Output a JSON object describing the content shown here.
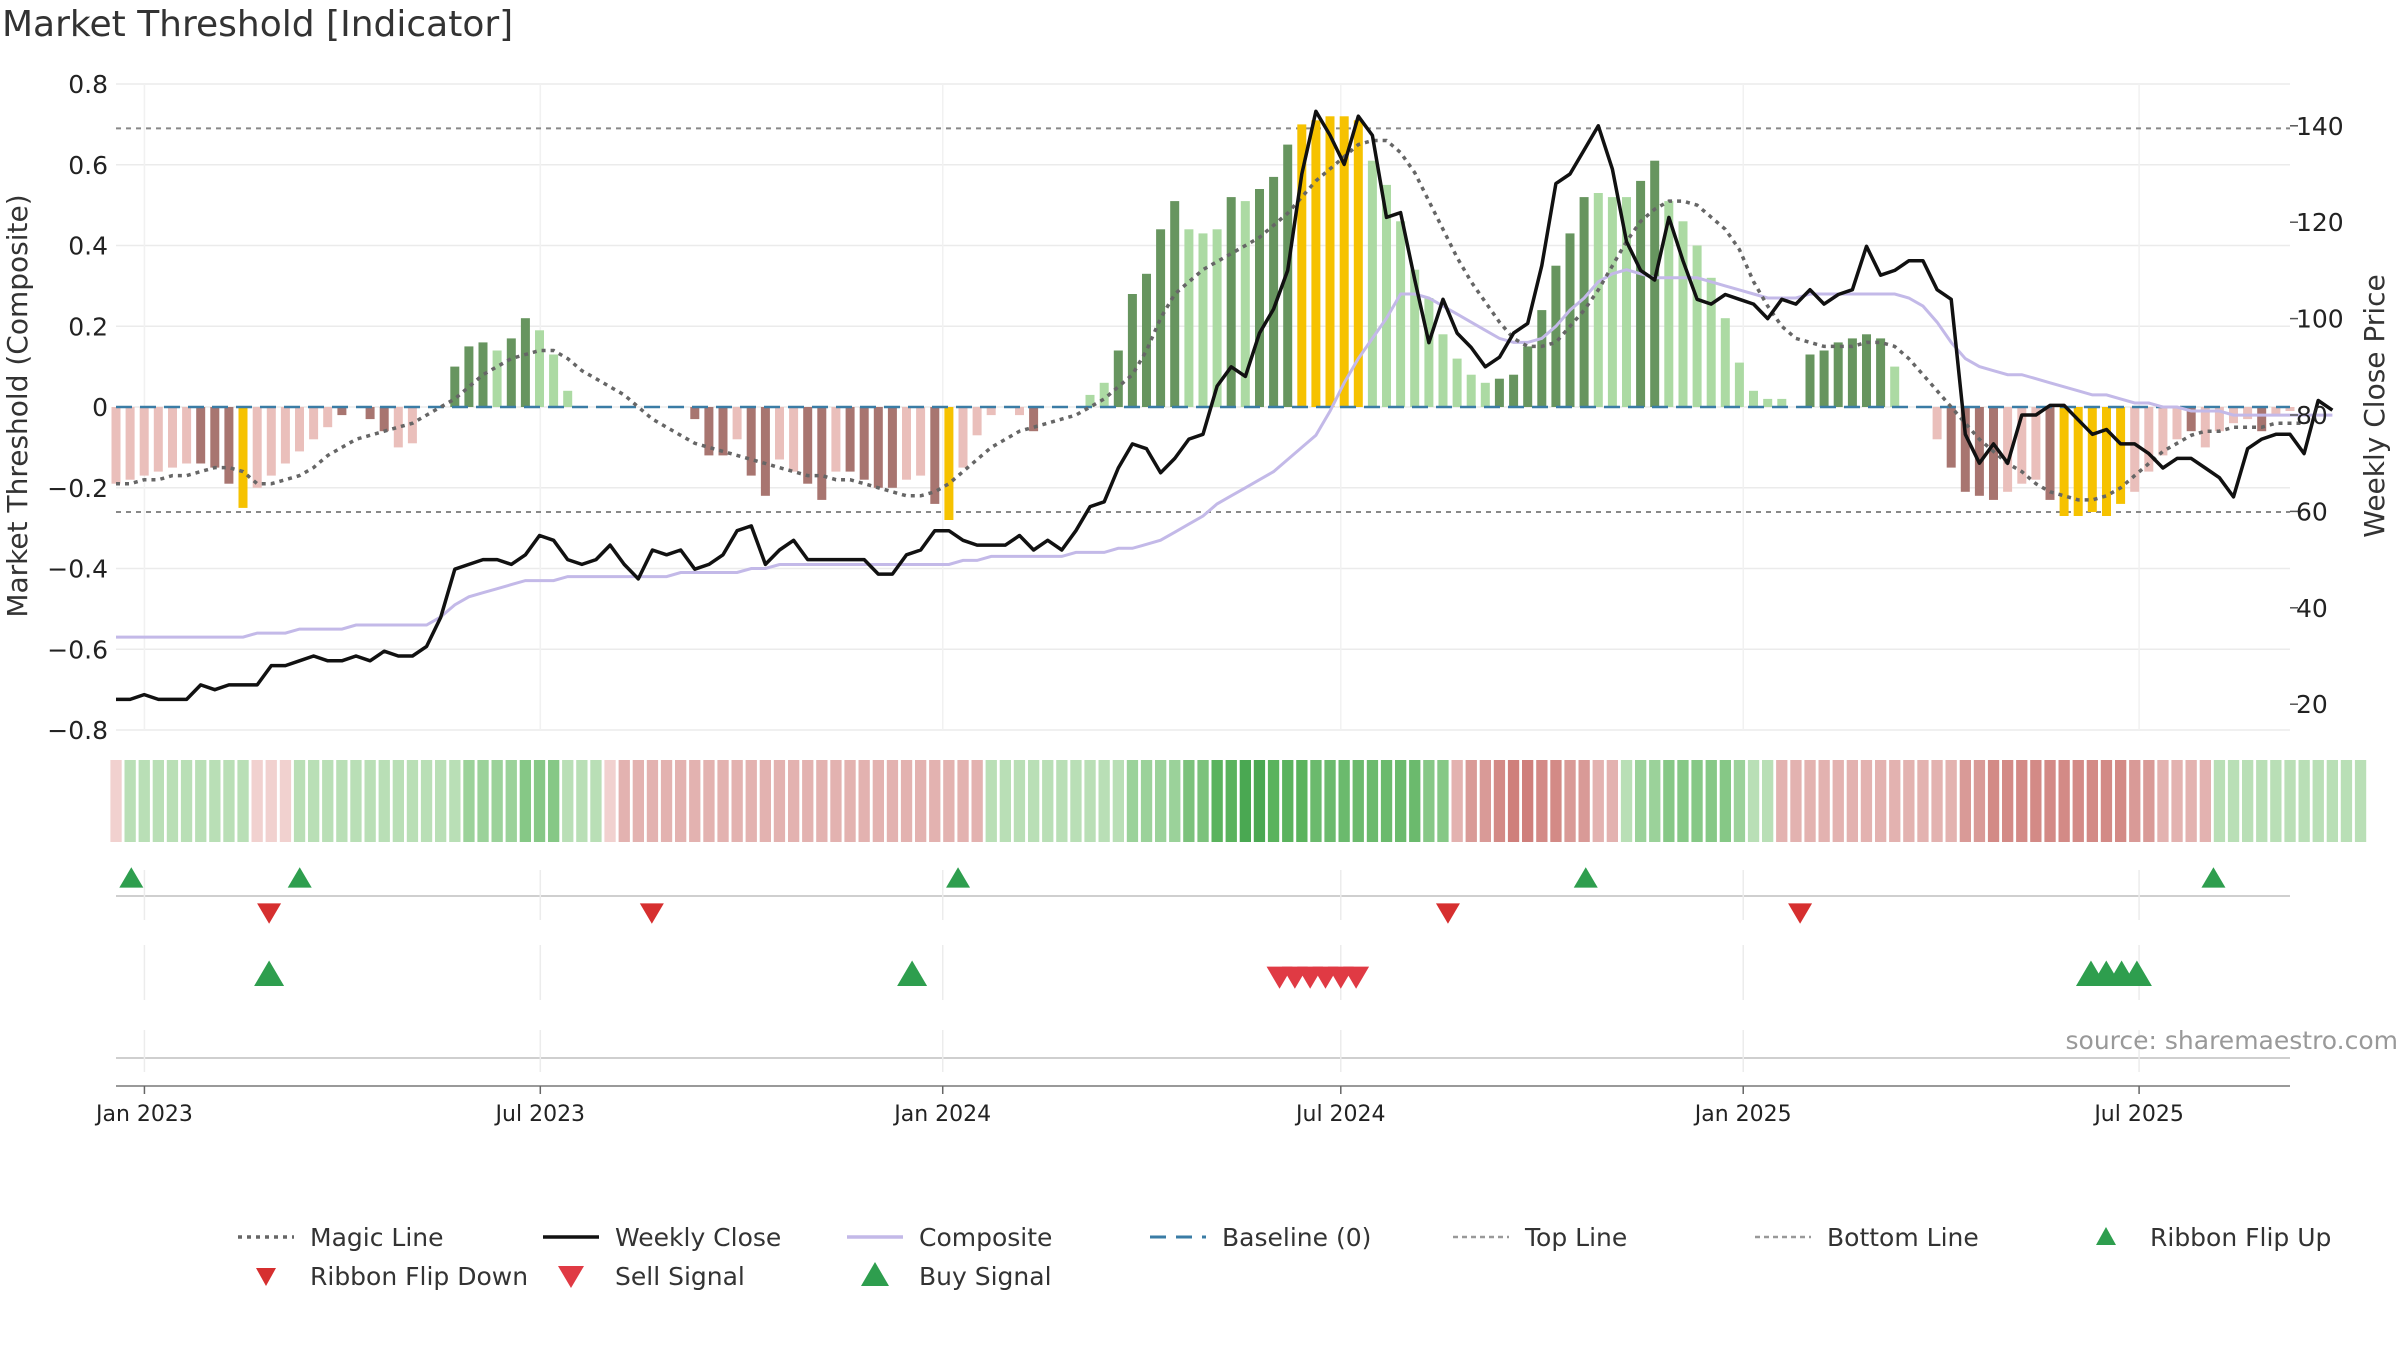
{
  "chart_data": {
    "type": "bar",
    "title": "Market Threshold [Indicator]",
    "ylabel_left": "Market Threshold (Composite)",
    "ylabel_right": "Weekly Close Price",
    "left_ylim": [
      -0.8,
      0.8
    ],
    "left_yticks": [
      -0.8,
      -0.6,
      -0.4,
      -0.2,
      0,
      0.2,
      0.4,
      0.6,
      0.8
    ],
    "left_ytick_labels": [
      "−0.8",
      "−0.6",
      "−0.4",
      "−0.2",
      "0",
      "0.2",
      "0.4",
      "0.6",
      "0.8"
    ],
    "right_yticks": [
      20,
      40,
      60,
      80,
      100,
      120,
      140
    ],
    "right_ytick_labels": [
      "20",
      "40",
      "60",
      "80",
      "100",
      "120",
      "140"
    ],
    "x_start": "2022-12-19",
    "x_end": "2025-09-08",
    "x_ticks": [
      {
        "label": "Jan 2023",
        "date": "2023-01-01"
      },
      {
        "label": "Jul 2023",
        "date": "2023-07-01"
      },
      {
        "label": "Jan 2024",
        "date": "2024-01-01"
      },
      {
        "label": "Jul 2024",
        "date": "2024-07-01"
      },
      {
        "label": "Jan 2025",
        "date": "2025-01-01"
      },
      {
        "label": "Jul 2025",
        "date": "2025-07-01"
      }
    ],
    "grid": true,
    "top_line": 0.69,
    "bottom_line": -0.26,
    "baseline": 0,
    "bar_values": [
      -0.19,
      -0.18,
      -0.17,
      -0.16,
      -0.15,
      -0.14,
      -0.14,
      -0.15,
      -0.19,
      -0.25,
      -0.2,
      -0.17,
      -0.14,
      -0.11,
      -0.08,
      -0.05,
      -0.02,
      0,
      -0.03,
      -0.06,
      -0.1,
      -0.09,
      0,
      0,
      0.1,
      0.15,
      0.16,
      0.14,
      0.17,
      0.22,
      0.19,
      0.13,
      0.04,
      0,
      0,
      0,
      0,
      0,
      0,
      0,
      0,
      -0.03,
      -0.12,
      -0.12,
      -0.08,
      -0.17,
      -0.22,
      -0.13,
      -0.16,
      -0.19,
      -0.23,
      -0.16,
      -0.16,
      -0.18,
      -0.2,
      -0.2,
      -0.18,
      -0.17,
      -0.24,
      -0.28,
      -0.15,
      -0.07,
      -0.02,
      0,
      -0.02,
      -0.06,
      0,
      0,
      0,
      0.03,
      0.06,
      0.14,
      0.28,
      0.33,
      0.44,
      0.51,
      0.44,
      0.43,
      0.44,
      0.52,
      0.51,
      0.54,
      0.57,
      0.65,
      0.7,
      0.71,
      0.72,
      0.72,
      0.71,
      0.61,
      0.55,
      0.46,
      0.34,
      0.27,
      0.18,
      0.12,
      0.08,
      0.06,
      0.07,
      0.08,
      0.15,
      0.24,
      0.35,
      0.43,
      0.52,
      0.53,
      0.52,
      0.52,
      0.56,
      0.61,
      0.51,
      0.46,
      0.4,
      0.32,
      0.22,
      0.11,
      0.04,
      0.02,
      0.02,
      0,
      0.13,
      0.14,
      0.16,
      0.17,
      0.18,
      0.17,
      0.1,
      0,
      0,
      -0.08,
      -0.15,
      -0.21,
      -0.22,
      -0.23,
      -0.21,
      -0.19,
      -0.18,
      -0.23,
      -0.27,
      -0.27,
      -0.26,
      -0.27,
      -0.24,
      -0.21,
      -0.16,
      -0.12,
      -0.08,
      -0.06,
      -0.1,
      -0.06,
      -0.04,
      -0.03,
      -0.06,
      -0.02,
      -0.01
    ],
    "bar_colors": [
      "#eabfbb",
      "#eabfbb",
      "#eabfbb",
      "#eabfbb",
      "#eabfbb",
      "#eabfbb",
      "#a87570",
      "#a87570",
      "#a87570",
      "#f6c200",
      "#eabfbb",
      "#eabfbb",
      "#eabfbb",
      "#eabfbb",
      "#eabfbb",
      "#eabfbb",
      "#a87570",
      "#a87570",
      "#a87570",
      "#a87570",
      "#eabfbb",
      "#eabfbb",
      "#67955f",
      "#67955f",
      "#67955f",
      "#67955f",
      "#67955f",
      "#acdaa3",
      "#67955f",
      "#67955f",
      "#acdaa3",
      "#acdaa3",
      "#acdaa3",
      "#acdaa3",
      "#acdaa3",
      "#acdaa3",
      "#eabfbb",
      "#eabfbb",
      "#eabfbb",
      "#eabfbb",
      "#eabfbb",
      "#a87570",
      "#a87570",
      "#a87570",
      "#eabfbb",
      "#a87570",
      "#a87570",
      "#eabfbb",
      "#eabfbb",
      "#a87570",
      "#a87570",
      "#eabfbb",
      "#a87570",
      "#a87570",
      "#a87570",
      "#a87570",
      "#eabfbb",
      "#eabfbb",
      "#a87570",
      "#f6c200",
      "#eabfbb",
      "#eabfbb",
      "#eabfbb",
      "#eabfbb",
      "#eabfbb",
      "#a87570",
      "#acdaa3",
      "#acdaa3",
      "#acdaa3",
      "#acdaa3",
      "#acdaa3",
      "#67955f",
      "#67955f",
      "#67955f",
      "#67955f",
      "#67955f",
      "#acdaa3",
      "#acdaa3",
      "#acdaa3",
      "#67955f",
      "#acdaa3",
      "#67955f",
      "#67955f",
      "#67955f",
      "#f6c200",
      "#f6c200",
      "#f6c200",
      "#f6c200",
      "#f6c200",
      "#acdaa3",
      "#acdaa3",
      "#acdaa3",
      "#acdaa3",
      "#acdaa3",
      "#acdaa3",
      "#acdaa3",
      "#acdaa3",
      "#acdaa3",
      "#67955f",
      "#67955f",
      "#67955f",
      "#67955f",
      "#67955f",
      "#67955f",
      "#67955f",
      "#acdaa3",
      "#acdaa3",
      "#acdaa3",
      "#67955f",
      "#67955f",
      "#acdaa3",
      "#acdaa3",
      "#acdaa3",
      "#acdaa3",
      "#acdaa3",
      "#acdaa3",
      "#acdaa3",
      "#acdaa3",
      "#acdaa3",
      "#acdaa3",
      "#67955f",
      "#67955f",
      "#67955f",
      "#67955f",
      "#67955f",
      "#67955f",
      "#acdaa3",
      "#acdaa3",
      "#acdaa3",
      "#eabfbb",
      "#a87570",
      "#a87570",
      "#a87570",
      "#a87570",
      "#eabfbb",
      "#eabfbb",
      "#eabfbb",
      "#a87570",
      "#f6c200",
      "#f6c200",
      "#f6c200",
      "#f6c200",
      "#f6c200",
      "#eabfbb",
      "#eabfbb",
      "#eabfbb",
      "#eabfbb",
      "#a87570",
      "#eabfbb",
      "#eabfbb",
      "#eabfbb",
      "#eabfbb",
      "#a87570",
      "#eabfbb",
      "#eabfbb"
    ],
    "weekly_close": [
      21,
      21,
      22,
      21,
      21,
      21,
      24,
      23,
      24,
      24,
      24,
      28,
      28,
      29,
      30,
      29,
      29,
      30,
      29,
      31,
      30,
      30,
      32,
      38,
      48,
      49,
      50,
      50,
      49,
      51,
      55,
      54,
      50,
      49,
      50,
      53,
      49,
      46,
      52,
      51,
      52,
      48,
      49,
      51,
      56,
      57,
      49,
      52,
      54,
      50,
      50,
      50,
      50,
      50,
      47,
      47,
      51,
      52,
      56,
      56,
      54,
      53,
      53,
      53,
      55,
      52,
      54,
      52,
      56,
      61,
      62,
      69,
      74,
      73,
      68,
      71,
      75,
      76,
      86,
      90,
      88,
      97,
      102,
      110,
      130,
      143,
      138,
      132,
      142,
      138,
      121,
      122,
      108,
      95,
      104,
      97,
      94,
      90,
      92,
      97,
      99,
      111,
      128,
      130,
      135,
      140,
      131,
      116,
      110,
      108,
      121,
      112,
      104,
      103,
      105,
      104,
      103,
      100,
      104,
      103,
      106,
      103,
      105,
      106,
      115,
      109,
      110,
      112,
      112,
      106,
      104,
      76,
      70,
      74,
      70,
      80,
      80,
      82,
      82,
      79,
      76,
      77,
      74,
      74,
      72,
      69,
      71,
      71,
      69,
      67,
      63,
      73,
      75,
      76,
      76,
      72,
      83,
      81
    ],
    "composite": [
      -0.57,
      -0.57,
      -0.57,
      -0.57,
      -0.57,
      -0.57,
      -0.57,
      -0.57,
      -0.57,
      -0.57,
      -0.56,
      -0.56,
      -0.56,
      -0.55,
      -0.55,
      -0.55,
      -0.55,
      -0.54,
      -0.54,
      -0.54,
      -0.54,
      -0.54,
      -0.54,
      -0.52,
      -0.49,
      -0.47,
      -0.46,
      -0.45,
      -0.44,
      -0.43,
      -0.43,
      -0.43,
      -0.42,
      -0.42,
      -0.42,
      -0.42,
      -0.42,
      -0.42,
      -0.42,
      -0.42,
      -0.41,
      -0.41,
      -0.41,
      -0.41,
      -0.41,
      -0.4,
      -0.4,
      -0.39,
      -0.39,
      -0.39,
      -0.39,
      -0.39,
      -0.39,
      -0.39,
      -0.39,
      -0.39,
      -0.39,
      -0.39,
      -0.39,
      -0.39,
      -0.38,
      -0.38,
      -0.37,
      -0.37,
      -0.37,
      -0.37,
      -0.37,
      -0.37,
      -0.36,
      -0.36,
      -0.36,
      -0.35,
      -0.35,
      -0.34,
      -0.33,
      -0.31,
      -0.29,
      -0.27,
      -0.24,
      -0.22,
      -0.2,
      -0.18,
      -0.16,
      -0.13,
      -0.1,
      -0.07,
      -0.01,
      0.06,
      0.12,
      0.17,
      0.22,
      0.28,
      0.28,
      0.27,
      0.25,
      0.23,
      0.21,
      0.19,
      0.17,
      0.16,
      0.16,
      0.17,
      0.2,
      0.24,
      0.27,
      0.31,
      0.33,
      0.34,
      0.33,
      0.32,
      0.32,
      0.32,
      0.32,
      0.31,
      0.3,
      0.29,
      0.28,
      0.27,
      0.27,
      0.27,
      0.28,
      0.28,
      0.28,
      0.28,
      0.28,
      0.28,
      0.28,
      0.27,
      0.25,
      0.21,
      0.16,
      0.12,
      0.1,
      0.09,
      0.08,
      0.08,
      0.07,
      0.06,
      0.05,
      0.04,
      0.03,
      0.03,
      0.02,
      0.01,
      0.01,
      0,
      0,
      -0.01,
      -0.01,
      -0.01,
      -0.02,
      -0.02,
      -0.02,
      -0.02,
      -0.02,
      -0.02,
      -0.02,
      -0.02
    ],
    "magic_line": [
      -0.19,
      -0.19,
      -0.18,
      -0.18,
      -0.17,
      -0.17,
      -0.16,
      -0.15,
      -0.15,
      -0.16,
      -0.19,
      -0.19,
      -0.18,
      -0.17,
      -0.15,
      -0.12,
      -0.1,
      -0.08,
      -0.07,
      -0.06,
      -0.05,
      -0.04,
      -0.02,
      0,
      0.02,
      0.05,
      0.08,
      0.1,
      0.12,
      0.13,
      0.14,
      0.14,
      0.12,
      0.09,
      0.07,
      0.05,
      0.03,
      0,
      -0.03,
      -0.05,
      -0.07,
      -0.09,
      -0.1,
      -0.11,
      -0.12,
      -0.13,
      -0.14,
      -0.15,
      -0.16,
      -0.17,
      -0.17,
      -0.18,
      -0.18,
      -0.19,
      -0.2,
      -0.21,
      -0.22,
      -0.22,
      -0.21,
      -0.19,
      -0.16,
      -0.13,
      -0.1,
      -0.08,
      -0.06,
      -0.05,
      -0.04,
      -0.03,
      -0.02,
      0,
      0.02,
      0.05,
      0.08,
      0.14,
      0.22,
      0.28,
      0.31,
      0.34,
      0.36,
      0.38,
      0.4,
      0.42,
      0.45,
      0.48,
      0.52,
      0.56,
      0.59,
      0.62,
      0.65,
      0.66,
      0.66,
      0.63,
      0.58,
      0.51,
      0.44,
      0.37,
      0.31,
      0.26,
      0.21,
      0.17,
      0.15,
      0.15,
      0.16,
      0.2,
      0.24,
      0.29,
      0.35,
      0.41,
      0.46,
      0.49,
      0.51,
      0.51,
      0.5,
      0.47,
      0.44,
      0.39,
      0.31,
      0.25,
      0.2,
      0.17,
      0.16,
      0.15,
      0.15,
      0.15,
      0.16,
      0.16,
      0.15,
      0.12,
      0.08,
      0.04,
      0,
      -0.04,
      -0.08,
      -0.11,
      -0.14,
      -0.16,
      -0.19,
      -0.21,
      -0.22,
      -0.23,
      -0.23,
      -0.22,
      -0.2,
      -0.17,
      -0.14,
      -0.11,
      -0.09,
      -0.07,
      -0.06,
      -0.06,
      -0.05,
      -0.05,
      -0.05,
      -0.04,
      -0.04,
      -0.04
    ],
    "ribbon_colors": [
      "#f1d1cf",
      "#b9dfb6",
      "#b9dfb6",
      "#b9dfb6",
      "#b9dfb6",
      "#b9dfb6",
      "#b9dfb6",
      "#b9dfb6",
      "#b9dfb6",
      "#b9dfb6",
      "#f1d1cf",
      "#f1d1cf",
      "#f1d1cf",
      "#b9dfb6",
      "#b9dfb6",
      "#b9dfb6",
      "#b9dfb6",
      "#b9dfb6",
      "#b9dfb6",
      "#b9dfb6",
      "#b9dfb6",
      "#b9dfb6",
      "#b9dfb6",
      "#b9dfb6",
      "#b9dfb6",
      "#9bd29a",
      "#9bd29a",
      "#9bd29a",
      "#9bd29a",
      "#86c886",
      "#86c886",
      "#86c886",
      "#b9dfb6",
      "#b9dfb6",
      "#b9dfb6",
      "#f1d1cf",
      "#e3b2b0",
      "#e3b2b0",
      "#e3b2b0",
      "#e3b2b0",
      "#e3b2b0",
      "#e3b2b0",
      "#e3b2b0",
      "#e3b2b0",
      "#e3b2b0",
      "#e3b2b0",
      "#e3b2b0",
      "#e3b2b0",
      "#e3b2b0",
      "#e3b2b0",
      "#e3b2b0",
      "#e3b2b0",
      "#e3b2b0",
      "#e3b2b0",
      "#e3b2b0",
      "#e3b2b0",
      "#e3b2b0",
      "#e3b2b0",
      "#e3b2b0",
      "#e3b2b0",
      "#e3b2b0",
      "#e3b2b0",
      "#b9dfb6",
      "#b9dfb6",
      "#b9dfb6",
      "#b9dfb6",
      "#b9dfb6",
      "#b9dfb6",
      "#b9dfb6",
      "#b9dfb6",
      "#b9dfb6",
      "#b9dfb6",
      "#9bd29a",
      "#9bd29a",
      "#9bd29a",
      "#9bd29a",
      "#7cc27c",
      "#7cc27c",
      "#5ab35d",
      "#5ab35d",
      "#4aa852",
      "#4aa852",
      "#5ab35d",
      "#5ab35d",
      "#5ab35d",
      "#6bba6d",
      "#6bba6d",
      "#6bba6d",
      "#6bba6d",
      "#6bba6d",
      "#6bba6d",
      "#6bba6d",
      "#6bba6d",
      "#86c886",
      "#86c886",
      "#e3b2b0",
      "#d99a97",
      "#d99a97",
      "#d38a86",
      "#cf7f7b",
      "#cf7f7b",
      "#d38a86",
      "#d38a86",
      "#d99a97",
      "#d99a97",
      "#e3b2b0",
      "#e3b2b0",
      "#b9dfb6",
      "#9bd29a",
      "#9bd29a",
      "#86c886",
      "#86c886",
      "#86c886",
      "#86c886",
      "#86c886",
      "#9bd29a",
      "#b9dfb6",
      "#b9dfb6",
      "#e3b2b0",
      "#e3b2b0",
      "#e3b2b0",
      "#e3b2b0",
      "#e3b2b0",
      "#e3b2b0",
      "#e3b2b0",
      "#e3b2b0",
      "#e3b2b0",
      "#e3b2b0",
      "#e3b2b0",
      "#e3b2b0",
      "#e3b2b0",
      "#d99a97",
      "#d99a97",
      "#d38a86",
      "#d38a86",
      "#d38a86",
      "#d38a86",
      "#d38a86",
      "#d38a86",
      "#d38a86",
      "#d38a86",
      "#d38a86",
      "#d38a86",
      "#d99a97",
      "#d99a97",
      "#e3b2b0",
      "#e3b2b0",
      "#e3b2b0",
      "#e3b2b0",
      "#b9dfb6",
      "#b9dfb6",
      "#b9dfb6",
      "#b9dfb6",
      "#b9dfb6",
      "#b9dfb6",
      "#b9dfb6",
      "#b9dfb6",
      "#b9dfb6",
      "#b9dfb6",
      "#b9dfb6"
    ],
    "ribbon_flip_up": [
      "2022-12-26",
      "2023-03-13",
      "2024-01-08",
      "2024-10-21",
      "2025-08-04"
    ],
    "ribbon_flip_down": [
      "2023-02-27",
      "2023-08-21",
      "2024-08-19",
      "2025-01-27"
    ],
    "sell_signals": [
      "2024-06-03",
      "2024-06-10",
      "2024-06-17",
      "2024-06-24",
      "2024-07-01",
      "2024-07-08"
    ],
    "buy_signals": [
      "2023-02-27",
      "2023-12-18",
      "2025-06-09",
      "2025-06-16",
      "2025-06-23",
      "2025-06-30"
    ],
    "legend": [
      {
        "label": "Magic Line",
        "kind": "dotted-line",
        "color": "#666666"
      },
      {
        "label": "Weekly Close",
        "kind": "line",
        "color": "#111111"
      },
      {
        "label": "Composite",
        "kind": "line",
        "color": "#c3b9e8"
      },
      {
        "label": "Baseline (0)",
        "kind": "dashed-line",
        "color": "#3a7ca5"
      },
      {
        "label": "Top Line",
        "kind": "fine-dashed-line",
        "color": "#999999"
      },
      {
        "label": "Bottom Line",
        "kind": "fine-dashed-line",
        "color": "#999999"
      },
      {
        "label": "Ribbon Flip Up",
        "kind": "triangle-up-small",
        "color": "#2e9e4e"
      },
      {
        "label": "Ribbon Flip Down",
        "kind": "triangle-down-small",
        "color": "#d62f2f"
      },
      {
        "label": "Sell Signal",
        "kind": "triangle-down",
        "color": "#e03a44"
      },
      {
        "label": "Buy Signal",
        "kind": "triangle-up",
        "color": "#2e9e4e"
      }
    ],
    "legend_position": "bottom",
    "source": "source: sharemaestro.com",
    "colors": {
      "bull_strong": "#67955f",
      "bull_weak": "#acdaa3",
      "bear_strong": "#a87570",
      "bear_weak": "#eabfbb",
      "extreme": "#f6c200",
      "magic": "#666666",
      "close": "#111111",
      "composite": "#c3b9e8",
      "baseline": "#3a7ca5",
      "thresholds": "#888888",
      "flip_up": "#2e9e4e",
      "flip_down": "#d62f2f",
      "sell": "#e03a44",
      "buy": "#2e9e4e"
    }
  }
}
